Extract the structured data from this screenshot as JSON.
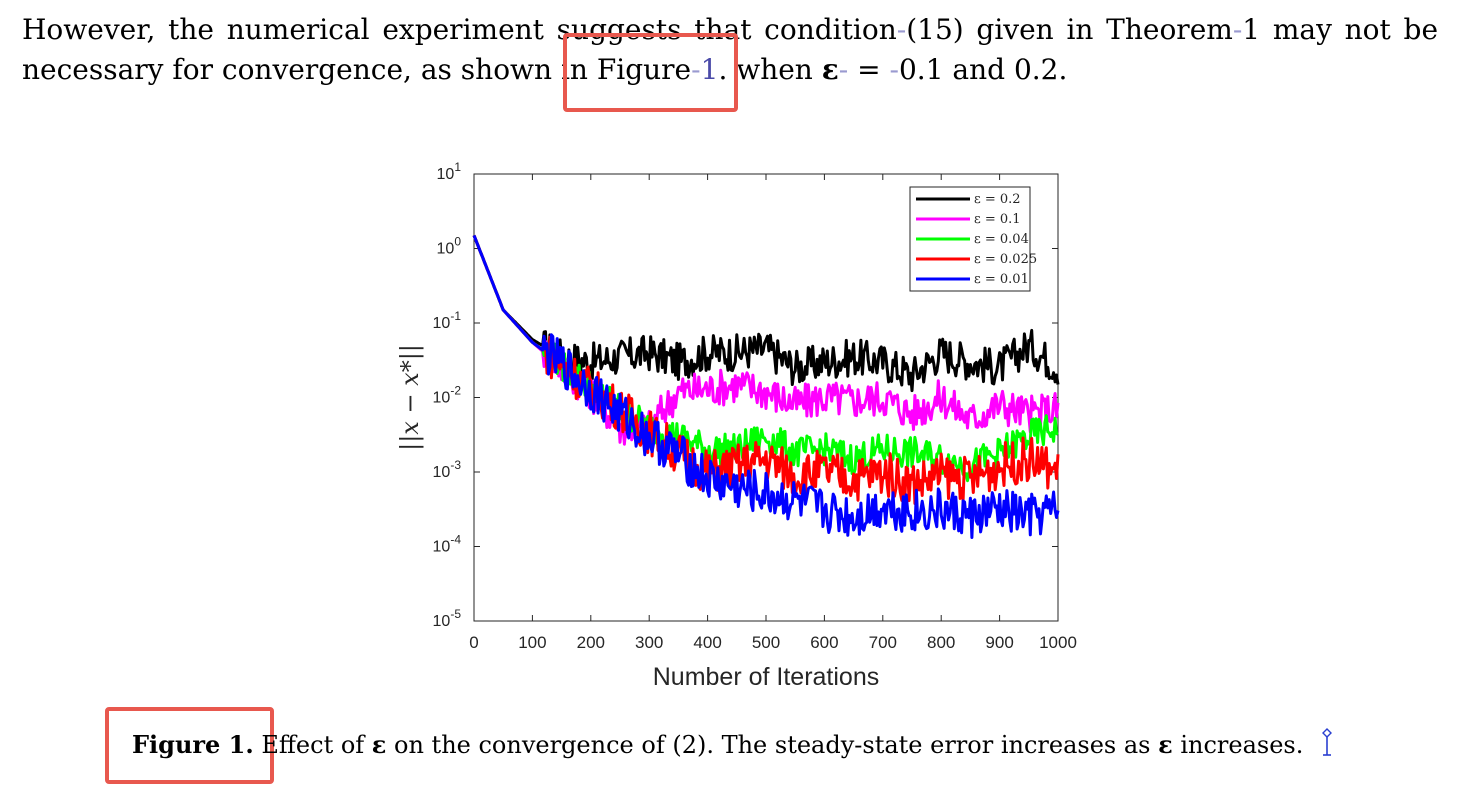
{
  "paragraph": {
    "text1": "However, the numerical experiment suggests that condition",
    "text2": "(15) given in Theorem",
    "text3": "1 may not be necessary for convergence, as shown in Figure",
    "ref": "1",
    "text4": ". when ",
    "epsilon": "ε",
    "text5": " = ",
    "text6": "0.1",
    "text7": " and ",
    "text8": "0.2."
  },
  "figure_caption": {
    "label": "Figure 1.",
    "text1": " Effect of ",
    "epsilon": "ε",
    "text2": " on the convergence of ",
    "text3": "(2). The steady-state error increases as ",
    "epsilon2": "ε",
    "text4": " increases."
  },
  "chart_data": {
    "type": "line",
    "xlabel": "Number of Iterations",
    "ylabel": "||x − x*||",
    "xlim": [
      0,
      1000
    ],
    "ylim": [
      1e-05,
      10
    ],
    "y_scale": "log",
    "x_ticks": [
      "0",
      "100",
      "200",
      "300",
      "400",
      "500",
      "600",
      "700",
      "800",
      "900",
      "1000"
    ],
    "y_ticks": [
      "10^1",
      "10^0",
      "10^-1",
      "10^-2",
      "10^-3",
      "10^-4",
      "10^-5"
    ],
    "legend_position": "top-right",
    "x": [
      0,
      50,
      100,
      150,
      200,
      250,
      300,
      350,
      400,
      450,
      500,
      550,
      600,
      650,
      700,
      750,
      800,
      850,
      900,
      950,
      1000
    ],
    "series": [
      {
        "name": "ε = 0.2",
        "color": "#000000",
        "values": [
          1.5,
          0.15,
          0.06,
          0.035,
          0.03,
          0.035,
          0.04,
          0.03,
          0.04,
          0.04,
          0.045,
          0.025,
          0.03,
          0.035,
          0.03,
          0.02,
          0.04,
          0.03,
          0.025,
          0.05,
          0.025
        ]
      },
      {
        "name": "ε = 0.1",
        "color": "#ff00ff",
        "values": [
          1.5,
          0.15,
          0.055,
          0.025,
          0.012,
          0.004,
          0.004,
          0.012,
          0.013,
          0.015,
          0.012,
          0.008,
          0.01,
          0.009,
          0.01,
          0.006,
          0.01,
          0.005,
          0.008,
          0.006,
          0.007
        ]
      },
      {
        "name": "ε = 0.04",
        "color": "#00ff00",
        "values": [
          1.5,
          0.15,
          0.055,
          0.028,
          0.014,
          0.007,
          0.004,
          0.003,
          0.002,
          0.002,
          0.003,
          0.0018,
          0.002,
          0.0015,
          0.002,
          0.0018,
          0.0015,
          0.0012,
          0.0018,
          0.003,
          0.004
        ]
      },
      {
        "name": "ε = 0.025",
        "color": "#ff0000",
        "values": [
          1.5,
          0.15,
          0.055,
          0.028,
          0.013,
          0.007,
          0.0035,
          0.0018,
          0.001,
          0.0012,
          0.0015,
          0.0009,
          0.001,
          0.0008,
          0.001,
          0.0007,
          0.0009,
          0.0008,
          0.0012,
          0.0015,
          0.001
        ]
      },
      {
        "name": "ε = 0.01",
        "color": "#0000ff",
        "values": [
          1.5,
          0.15,
          0.055,
          0.028,
          0.013,
          0.006,
          0.003,
          0.0017,
          0.0008,
          0.0006,
          0.0005,
          0.0004,
          0.0003,
          0.00025,
          0.00035,
          0.0003,
          0.0003,
          0.00025,
          0.0003,
          0.00025,
          0.0003
        ]
      }
    ]
  }
}
